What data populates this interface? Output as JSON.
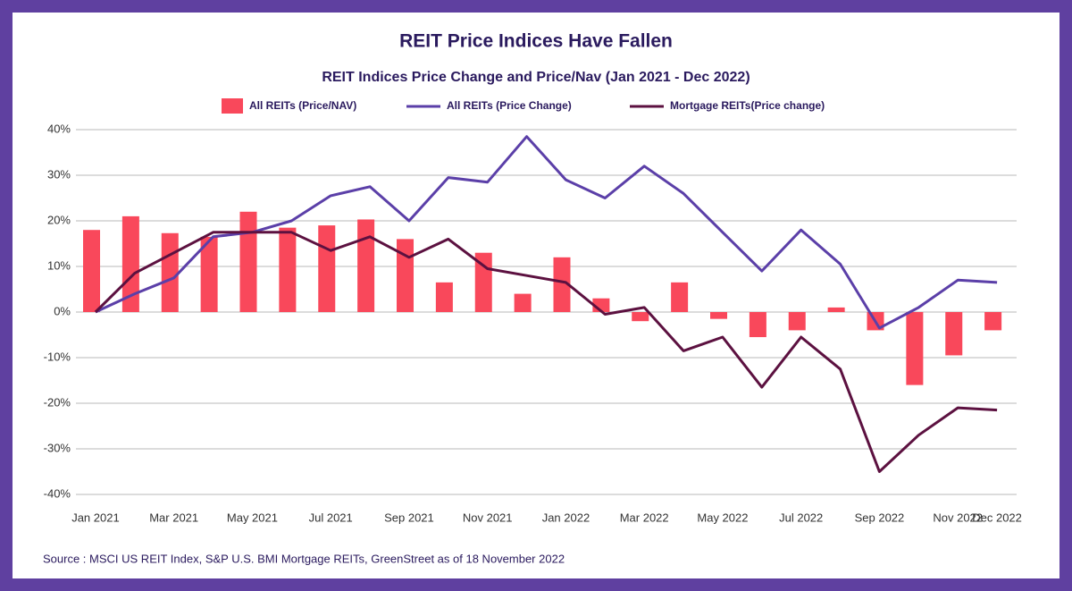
{
  "chart_data": {
    "type": "bar",
    "title": "REIT Price Indices Have Fallen",
    "subtitle": "REIT Indices Price Change and Price/Nav (Jan 2021 - Dec 2022)",
    "source": "Source : MSCI US REIT Index, S&P U.S. BMI Mortgage REITs, GreenStreet as of 18 November 2022",
    "categories": [
      "Jan 2021",
      null,
      "Mar 2021",
      null,
      "May 2021",
      null,
      "Jul 2021",
      null,
      "Sep 2021",
      null,
      "Nov 2021",
      null,
      "Jan 2022",
      null,
      "Mar 2022",
      null,
      "May 2022",
      null,
      "Jul 2022",
      null,
      "Sep 2022",
      null,
      "Nov 2022",
      "Dec 2022"
    ],
    "series": [
      {
        "name": "All REITs (Price/NAV)",
        "type": "bar",
        "color": "#f9485b",
        "values": [
          18,
          21,
          17.3,
          16.5,
          22,
          18.5,
          19,
          20.3,
          16,
          6.5,
          13,
          4,
          12,
          3,
          -2,
          6.5,
          -1.5,
          -5.5,
          -4,
          1,
          -4,
          -16,
          -9.5,
          -4
        ]
      },
      {
        "name": "All REITs (Price Change)",
        "type": "line",
        "color": "#5b3fa8",
        "values": [
          0,
          4,
          7.5,
          16.5,
          17.5,
          20,
          25.5,
          27.5,
          20,
          29.5,
          28.5,
          38.5,
          29,
          25,
          32,
          26,
          17.5,
          9,
          18,
          10.5,
          -3.5,
          1,
          7,
          6.5
        ]
      },
      {
        "name": "Mortgage REITs(Price change)",
        "type": "line",
        "color": "#5c1140",
        "values": [
          0,
          8.5,
          13,
          17.5,
          17.5,
          17.5,
          13.5,
          16.5,
          12,
          16,
          9.5,
          8,
          6.5,
          -0.5,
          1,
          -8.5,
          -5.5,
          -16.5,
          -5.5,
          -12.5,
          -35,
          -27,
          -21,
          -21.5
        ]
      }
    ],
    "ylim": [
      -40,
      40
    ],
    "yticks": [
      {
        "value": -40,
        "label": "-40%"
      },
      {
        "value": -30,
        "label": "-30%"
      },
      {
        "value": -20,
        "label": "-20%"
      },
      {
        "value": -10,
        "label": "-10%"
      },
      {
        "value": 0,
        "label": "0%"
      },
      {
        "value": 10,
        "label": "10%"
      },
      {
        "value": 20,
        "label": "20%"
      },
      {
        "value": 30,
        "label": "30%"
      },
      {
        "value": 40,
        "label": "40%"
      }
    ],
    "grid": true,
    "legend": "top"
  }
}
